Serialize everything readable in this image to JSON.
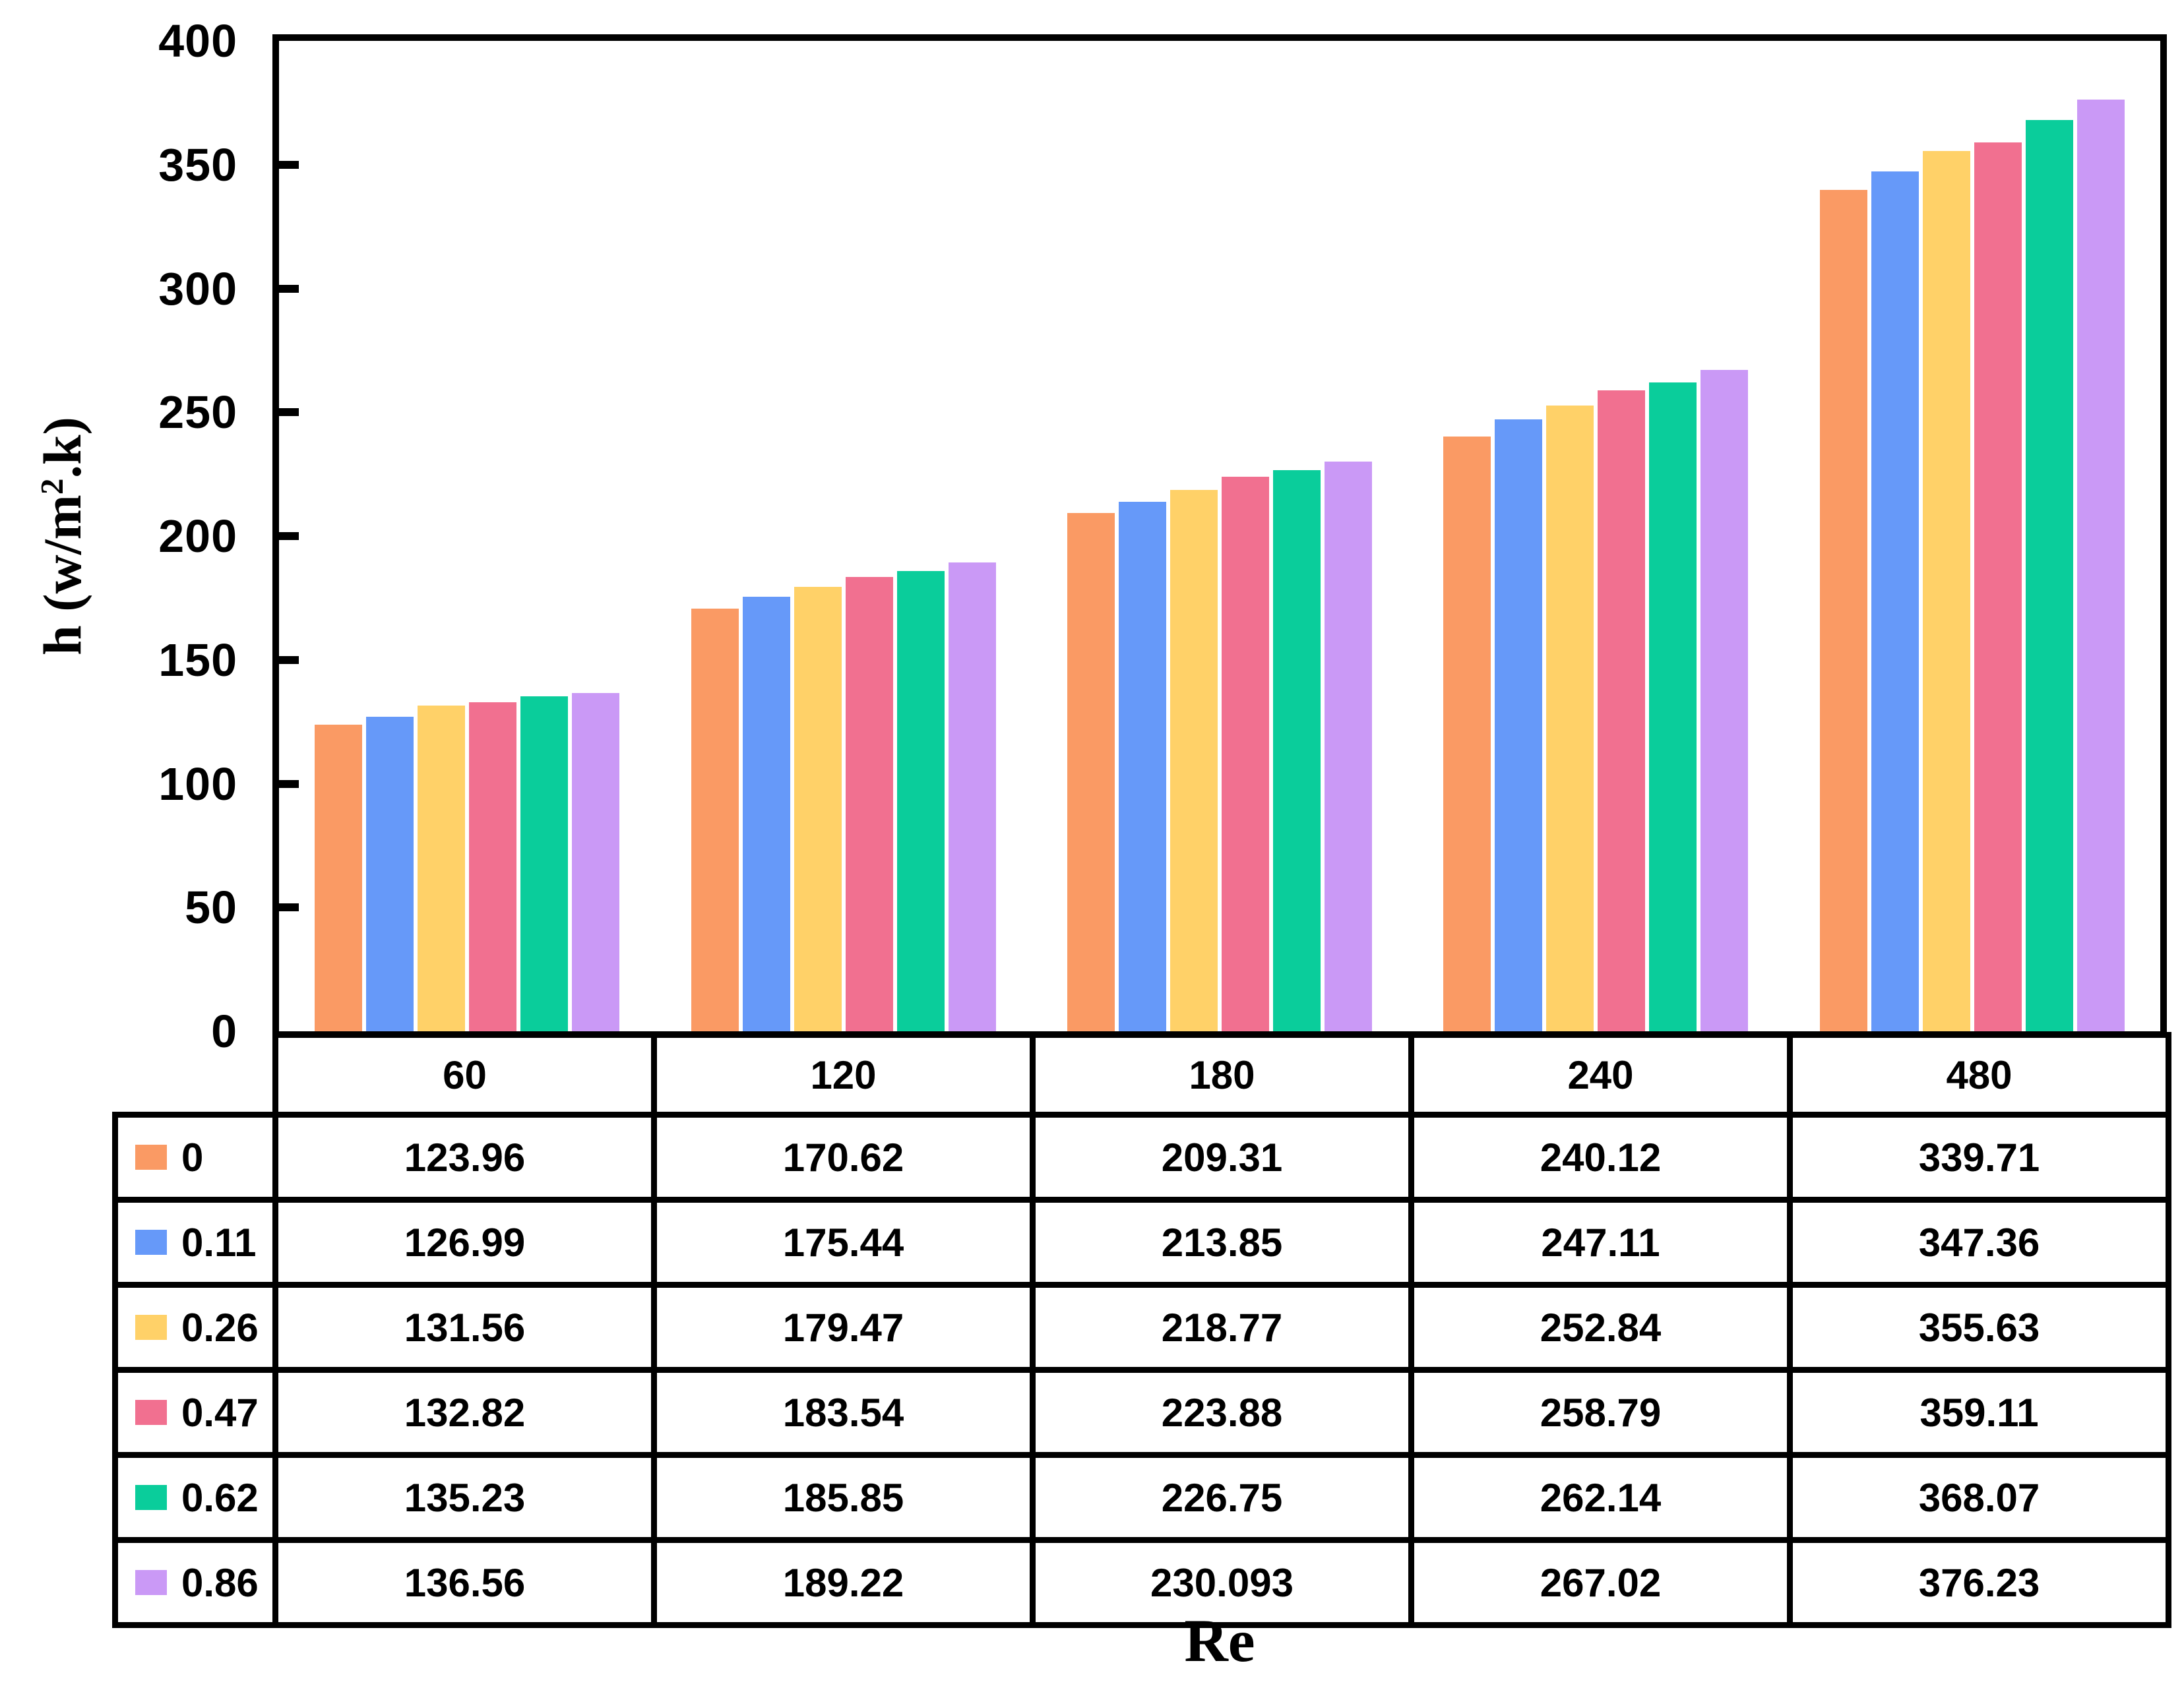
{
  "chart_data": {
    "type": "bar",
    "title": "",
    "xlabel": "Re",
    "ylabel": {
      "pre": "h (w/m",
      "sup": "2",
      "post": ".k)"
    },
    "ylim": [
      0,
      400
    ],
    "ytick_step": 50,
    "yticks": [
      "400",
      "350",
      "300",
      "250",
      "200",
      "150",
      "100",
      "50",
      "0"
    ],
    "grid": false,
    "legend_position": "table-left-column",
    "categories": [
      "60",
      "120",
      "180",
      "240",
      "480"
    ],
    "series": [
      {
        "name": "0",
        "color": "#FA9A64",
        "values": [
          "123.96",
          "170.62",
          "209.31",
          "240.12",
          "339.71"
        ]
      },
      {
        "name": "0.11",
        "color": "#6699F9",
        "values": [
          "126.99",
          "175.44",
          "213.85",
          "247.11",
          "347.36"
        ]
      },
      {
        "name": "0.26",
        "color": "#FFD168",
        "values": [
          "131.56",
          "179.47",
          "218.77",
          "252.84",
          "355.63"
        ]
      },
      {
        "name": "0.47",
        "color": "#F17090",
        "values": [
          "132.82",
          "183.54",
          "223.88",
          "258.79",
          "359.11"
        ]
      },
      {
        "name": "0.62",
        "color": "#0ACD9B",
        "values": [
          "135.23",
          "185.85",
          "226.75",
          "262.14",
          "368.07"
        ]
      },
      {
        "name": "0.86",
        "color": "#CA99F6",
        "values": [
          "136.56",
          "189.22",
          "230.093",
          "267.02",
          "376.23"
        ]
      }
    ]
  }
}
